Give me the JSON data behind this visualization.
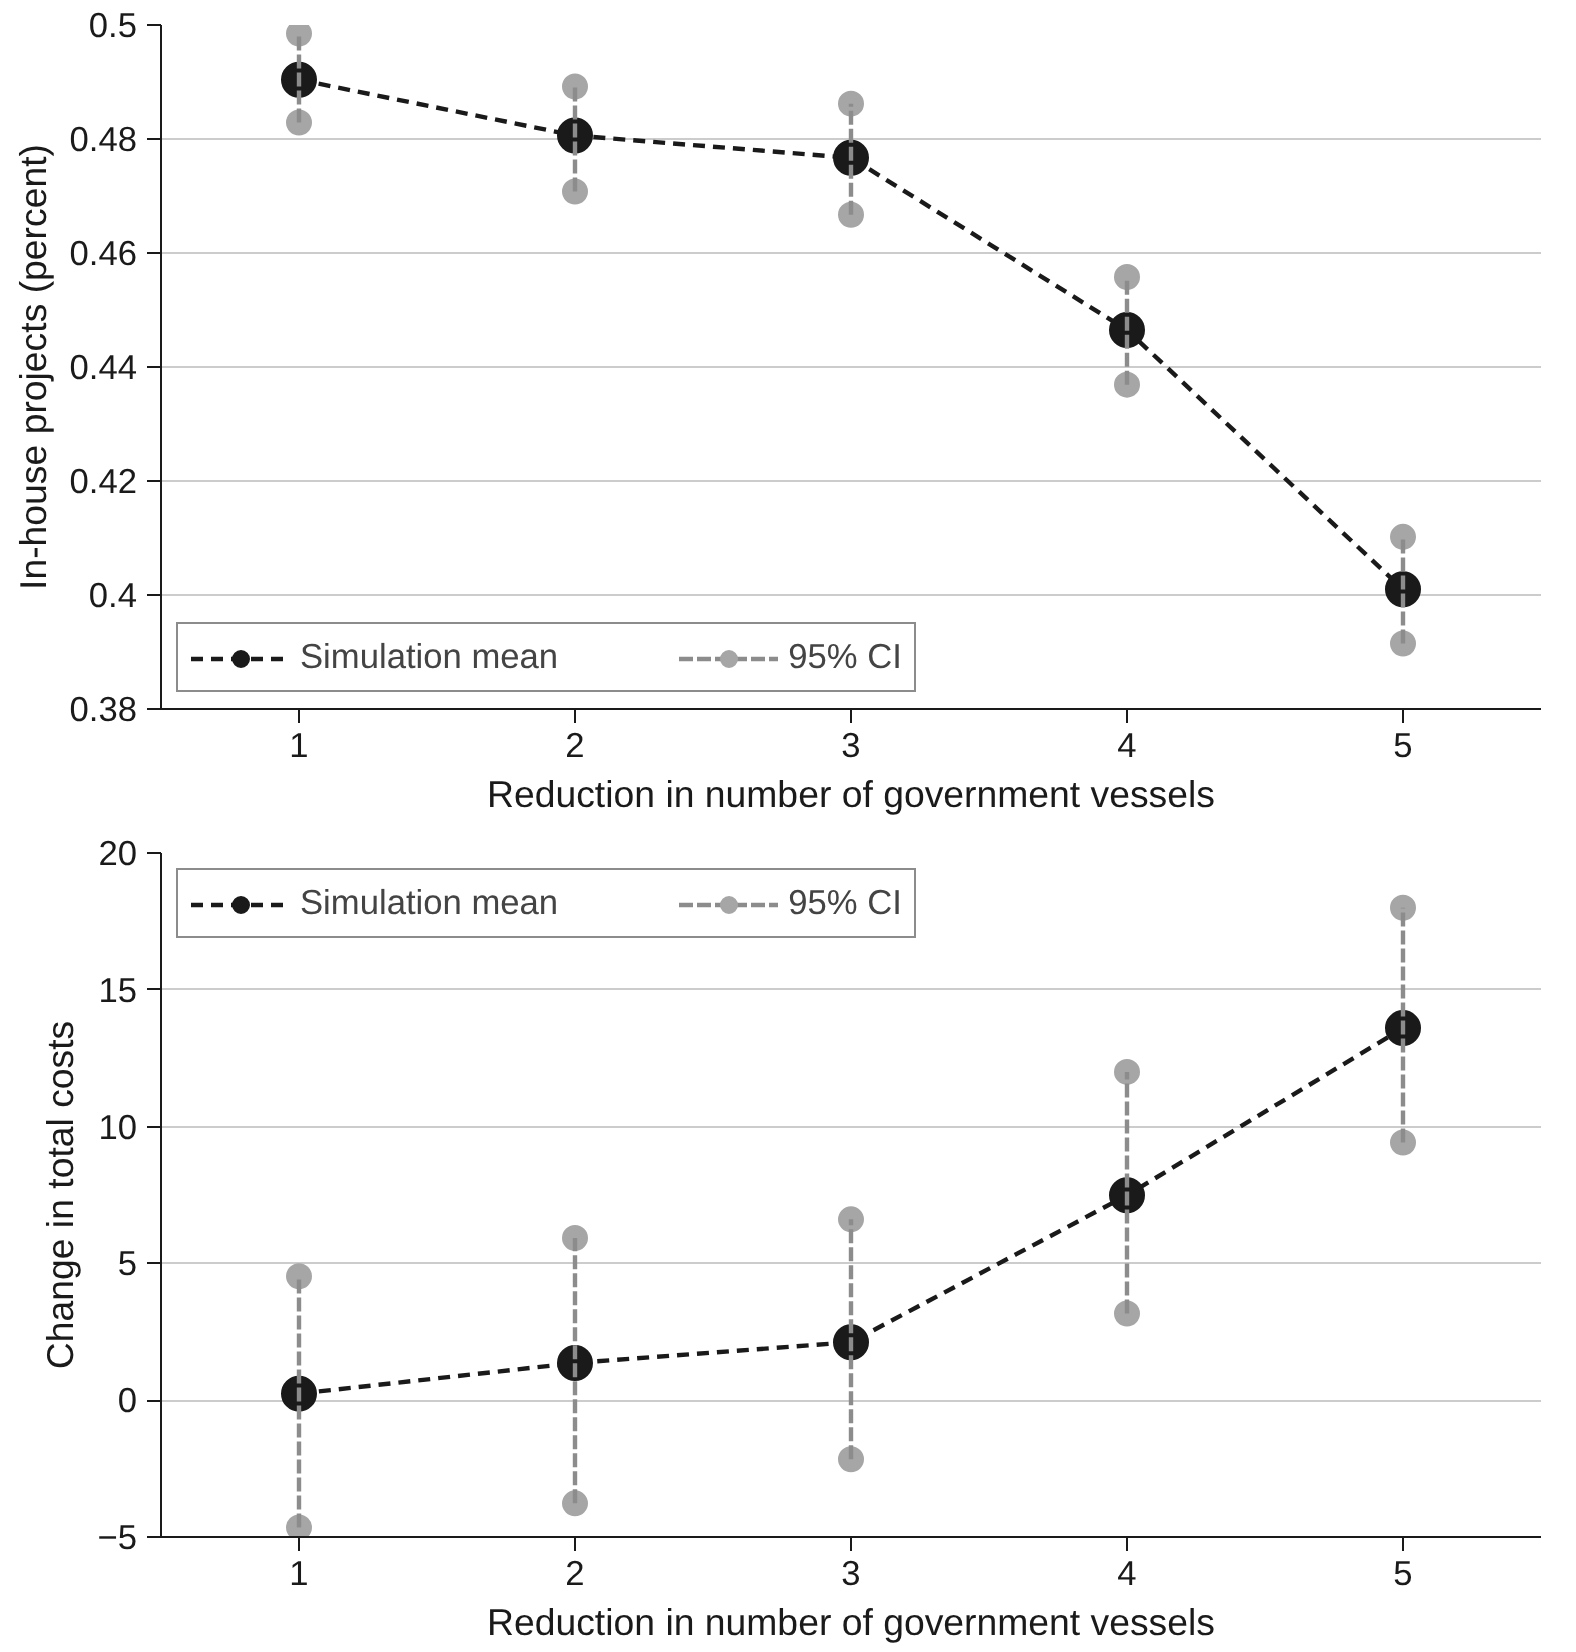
{
  "chart_data": [
    {
      "type": "line",
      "xlabel": "Reduction in number of government vessels",
      "ylabel": "In-house projects (percent)",
      "x": [
        1,
        2,
        3,
        4,
        5
      ],
      "xlim": [
        0.5,
        5.5
      ],
      "xticks": [
        1,
        2,
        3,
        4,
        5
      ],
      "ylim": [
        0.38,
        0.5
      ],
      "yticks": [
        0.38,
        0.4,
        0.42,
        0.44,
        0.46,
        0.48,
        0.5
      ],
      "grid": "y",
      "legend": "bottom left",
      "series": [
        {
          "name": "Simulation mean",
          "color": "#1a1a1a",
          "marker": "circle",
          "line_style": "dashed",
          "values": [
            0.4904,
            0.4806,
            0.4767,
            0.4465,
            0.401
          ],
          "errors": [
            [
              0.4829,
              0.4985
            ],
            [
              0.4708,
              0.4892
            ],
            [
              0.4667,
              0.4862
            ],
            [
              0.4369,
              0.4558
            ],
            [
              0.3915,
              0.4102
            ]
          ]
        },
        {
          "name": "95% CI",
          "type": "scatter",
          "color": "#a6a6a6",
          "marker": "circle",
          "line_style": "dashed",
          "x": [
            1,
            1,
            2,
            2,
            3,
            3,
            4,
            4,
            5,
            5
          ],
          "values": [
            0.4829,
            0.4985,
            0.4708,
            0.4892,
            0.4667,
            0.4862,
            0.4369,
            0.4558,
            0.3915,
            0.4102
          ]
        }
      ]
    },
    {
      "type": "line",
      "xlabel": "Reduction in number of government vessels",
      "ylabel": "Change in total costs",
      "x": [
        1,
        2,
        3,
        4,
        5
      ],
      "xlim": [
        0.5,
        5.5
      ],
      "xticks": [
        1,
        2,
        3,
        4,
        5
      ],
      "ylim": [
        -5,
        20
      ],
      "yticks": [
        {
          "value": -5,
          "label": "−5"
        },
        0,
        5,
        10,
        15,
        20
      ],
      "grid": "y",
      "legend": "top left",
      "series": [
        {
          "name": "Simulation mean",
          "color": "#1a1a1a",
          "marker": "circle",
          "line_style": "dashed",
          "values": [
            0.24,
            1.36,
            2.12,
            7.49,
            13.6
          ],
          "errors": [
            [
              -4.65,
              4.53
            ],
            [
              -3.77,
              5.93
            ],
            [
              -2.16,
              6.61
            ],
            [
              3.17,
              12.0
            ],
            [
              9.42,
              18.0
            ]
          ]
        },
        {
          "name": "95% CI",
          "type": "scatter",
          "color": "#a6a6a6",
          "marker": "circle",
          "line_style": "dashed",
          "x": [
            1,
            1,
            2,
            2,
            3,
            3,
            4,
            4,
            5,
            5
          ],
          "values": [
            -4.65,
            4.53,
            -3.77,
            5.93,
            -2.16,
            6.61,
            3.17,
            12.0,
            9.42,
            18.0
          ]
        }
      ]
    }
  ]
}
